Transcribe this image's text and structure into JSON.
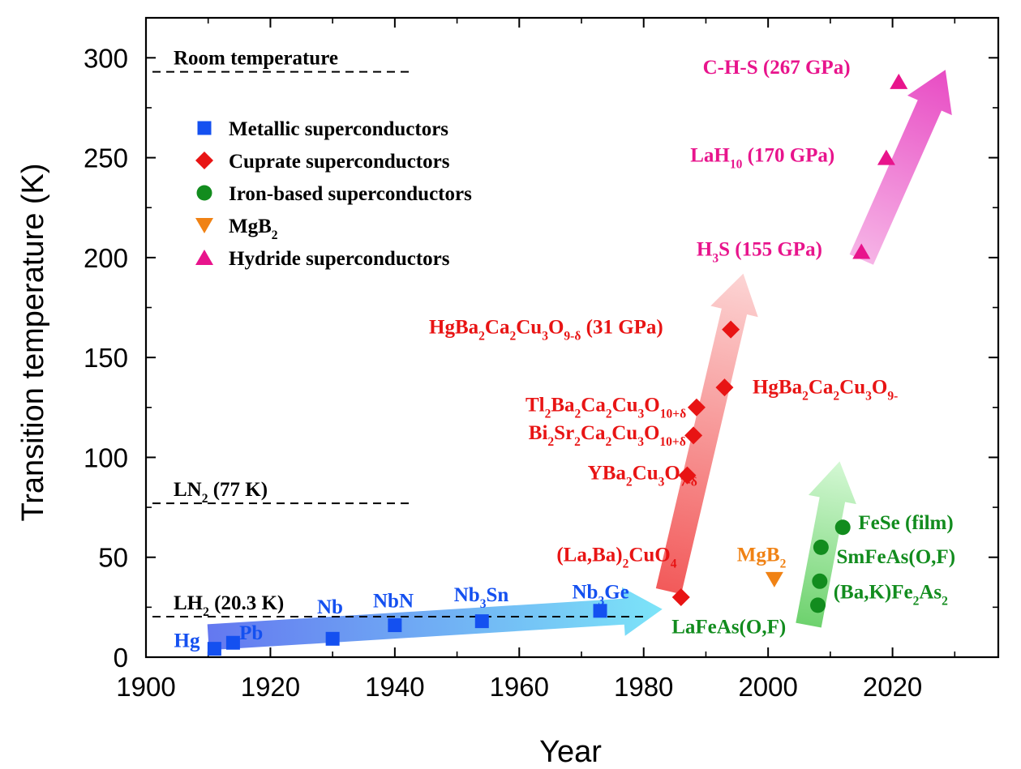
{
  "chart_data": {
    "type": "scatter",
    "title": "",
    "xlabel": "Year",
    "ylabel": "Transition temperature (K)",
    "xlim": [
      1900,
      2037
    ],
    "ylim": [
      0,
      320
    ],
    "xticks": [
      1900,
      1920,
      1940,
      1960,
      1980,
      2000,
      2020
    ],
    "yticks": [
      0,
      50,
      100,
      150,
      200,
      250,
      300
    ],
    "grid": false,
    "legend_position": "top-left",
    "reference_lines": [
      {
        "id": "room",
        "label": "Room temperature",
        "y": 293
      },
      {
        "id": "ln2",
        "label_main": "LN",
        "label_sub": "2",
        "label_rest": " (77 K)",
        "y": 77
      },
      {
        "id": "lh2",
        "label_main": "LH",
        "label_sub": "2",
        "label_rest": " (20.3 K)",
        "y": 20.3
      }
    ],
    "series": [
      {
        "id": "metallic",
        "name": "Metallic superconductors",
        "legend_parts": [
          {
            "t": "Metallic superconductors"
          }
        ],
        "marker": "square",
        "color": "#1450f0",
        "points": [
          {
            "x": 1911,
            "y": 4.2,
            "label": "Hg"
          },
          {
            "x": 1914,
            "y": 7.2,
            "label": "Pb"
          },
          {
            "x": 1930,
            "y": 9.2,
            "label": "Nb"
          },
          {
            "x": 1940,
            "y": 16,
            "label": "NbN"
          },
          {
            "x": 1954,
            "y": 18,
            "label": "Nb3Sn"
          },
          {
            "x": 1973,
            "y": 23.2,
            "label": "Nb3Ge"
          }
        ]
      },
      {
        "id": "cuprate",
        "name": "Cuprate superconductors",
        "legend_parts": [
          {
            "t": "Cuprate superconductors"
          }
        ],
        "marker": "diamond",
        "color": "#e81414",
        "points": [
          {
            "x": 1986,
            "y": 30,
            "label": "(La,Ba)2CuO4"
          },
          {
            "x": 1987,
            "y": 91,
            "label": "YBa2Cu3O7-δ"
          },
          {
            "x": 1988,
            "y": 111,
            "label": "Bi2Sr2Ca2Cu3O10+δ"
          },
          {
            "x": 1988.5,
            "y": 125,
            "label": "Tl2Ba2Ca2Cu3O10+δ"
          },
          {
            "x": 1993,
            "y": 135,
            "label": "HgBa2Ca2Cu3O9-"
          },
          {
            "x": 1994,
            "y": 164,
            "label": "HgBa2Ca2Cu3O9-δ (31 GPa)"
          }
        ]
      },
      {
        "id": "iron",
        "name": "Iron-based superconductors",
        "legend_parts": [
          {
            "t": "Iron-based superconductors"
          }
        ],
        "marker": "circle",
        "color": "#128c1e",
        "points": [
          {
            "x": 2008,
            "y": 26,
            "label": "LaFeAs(O,F)"
          },
          {
            "x": 2008.3,
            "y": 38,
            "label": "(Ba,K)Fe2As2"
          },
          {
            "x": 2008.5,
            "y": 55,
            "label": "SmFeAs(O,F)"
          },
          {
            "x": 2012,
            "y": 65,
            "label": "FeSe (film)"
          }
        ]
      },
      {
        "id": "mgb2",
        "name": "MgB2",
        "legend_parts": [
          {
            "t": "MgB"
          },
          {
            "t": "2",
            "sub": true
          }
        ],
        "marker": "triangle-down",
        "color": "#f08214",
        "points": [
          {
            "x": 2001,
            "y": 39,
            "label": "MgB2"
          }
        ]
      },
      {
        "id": "hydride",
        "name": "Hydride superconductors",
        "legend_parts": [
          {
            "t": "Hydride superconductors"
          }
        ],
        "marker": "triangle-up",
        "color": "#e8148c",
        "points": [
          {
            "x": 2015,
            "y": 203,
            "label": "H3S (155 GPa)"
          },
          {
            "x": 2019,
            "y": 250,
            "label": "LaH10 (170 GPa)"
          },
          {
            "x": 2021,
            "y": 288,
            "label": "C-H-S (267 GPa)"
          }
        ]
      }
    ],
    "annotations": [
      {
        "id": "hg",
        "color": "#1450f0",
        "x": 1904.5,
        "y": 5,
        "parts": [
          {
            "t": "Hg"
          }
        ]
      },
      {
        "id": "pb",
        "color": "#1450f0",
        "x": 1915,
        "y": 9,
        "parts": [
          {
            "t": "Pb"
          }
        ]
      },
      {
        "id": "nb",
        "color": "#1450f0",
        "x": 1927.5,
        "y": 22,
        "parts": [
          {
            "t": "Nb"
          }
        ]
      },
      {
        "id": "nbn",
        "color": "#1450f0",
        "x": 1936.5,
        "y": 25,
        "parts": [
          {
            "t": "NbN"
          }
        ]
      },
      {
        "id": "nb3sn",
        "color": "#1450f0",
        "x": 1949.5,
        "y": 28,
        "parts": [
          {
            "t": "Nb"
          },
          {
            "t": "3",
            "sub": true
          },
          {
            "t": "Sn"
          }
        ]
      },
      {
        "id": "nb3ge",
        "color": "#1450f0",
        "x": 1968.5,
        "y": 29.5,
        "parts": [
          {
            "t": "Nb"
          },
          {
            "t": "3",
            "sub": true
          },
          {
            "t": "Ge"
          }
        ]
      },
      {
        "id": "laba",
        "color": "#e81414",
        "x": 1966,
        "y": 48,
        "parts": [
          {
            "t": "(La,Ba)"
          },
          {
            "t": "2",
            "sub": true
          },
          {
            "t": "CuO"
          },
          {
            "t": "4",
            "sub": true
          }
        ]
      },
      {
        "id": "ybco",
        "color": "#e81414",
        "x": 1971,
        "y": 89,
        "parts": [
          {
            "t": "YBa"
          },
          {
            "t": "2",
            "sub": true
          },
          {
            "t": "Cu"
          },
          {
            "t": "3",
            "sub": true
          },
          {
            "t": "O"
          },
          {
            "t": "7-δ",
            "sub": true
          }
        ]
      },
      {
        "id": "bscco",
        "color": "#e81414",
        "x": 1961.5,
        "y": 109,
        "parts": [
          {
            "t": "Bi"
          },
          {
            "t": "2",
            "sub": true
          },
          {
            "t": "Sr"
          },
          {
            "t": "2",
            "sub": true
          },
          {
            "t": "Ca"
          },
          {
            "t": "2",
            "sub": true
          },
          {
            "t": "Cu"
          },
          {
            "t": "3",
            "sub": true
          },
          {
            "t": "O"
          },
          {
            "t": "10+δ",
            "sub": true
          }
        ]
      },
      {
        "id": "tbcco",
        "color": "#e81414",
        "x": 1961,
        "y": 123,
        "parts": [
          {
            "t": "Tl"
          },
          {
            "t": "2",
            "sub": true
          },
          {
            "t": "Ba"
          },
          {
            "t": "2",
            "sub": true
          },
          {
            "t": "Ca"
          },
          {
            "t": "2",
            "sub": true
          },
          {
            "t": "Cu"
          },
          {
            "t": "3",
            "sub": true
          },
          {
            "t": "O"
          },
          {
            "t": "10+δ",
            "sub": true
          }
        ]
      },
      {
        "id": "hbcco",
        "color": "#e81414",
        "x": 1997.5,
        "y": 132,
        "parts": [
          {
            "t": "HgBa"
          },
          {
            "t": "2",
            "sub": true
          },
          {
            "t": "Ca"
          },
          {
            "t": "2",
            "sub": true
          },
          {
            "t": "Cu"
          },
          {
            "t": "3",
            "sub": true
          },
          {
            "t": "O"
          },
          {
            "t": "9-",
            "sub": true
          }
        ]
      },
      {
        "id": "hbcco-p",
        "color": "#e81414",
        "x": 1945.5,
        "y": 162,
        "parts": [
          {
            "t": "HgBa"
          },
          {
            "t": "2",
            "sub": true
          },
          {
            "t": "Ca"
          },
          {
            "t": "2",
            "sub": true
          },
          {
            "t": "Cu"
          },
          {
            "t": "3",
            "sub": true
          },
          {
            "t": "O"
          },
          {
            "t": "9-δ",
            "sub": true
          },
          {
            "t": " (31 GPa)"
          }
        ]
      },
      {
        "id": "mgb2-label",
        "color": "#f08214",
        "x": 1995,
        "y": 48,
        "parts": [
          {
            "t": "MgB"
          },
          {
            "t": "2",
            "sub": true
          }
        ]
      },
      {
        "id": "lafeaso",
        "color": "#128c1e",
        "x": 1984.5,
        "y": 12,
        "parts": [
          {
            "t": "LaFeAs(O,F)"
          }
        ]
      },
      {
        "id": "bak",
        "color": "#128c1e",
        "x": 2010.5,
        "y": 29.5,
        "parts": [
          {
            "t": "(Ba,K)Fe"
          },
          {
            "t": "2",
            "sub": true
          },
          {
            "t": "As"
          },
          {
            "t": "2",
            "sub": true
          }
        ]
      },
      {
        "id": "smfeas",
        "color": "#128c1e",
        "x": 2011,
        "y": 47,
        "parts": [
          {
            "t": "SmFeAs(O,F)"
          }
        ]
      },
      {
        "id": "fese",
        "color": "#128c1e",
        "x": 2014.5,
        "y": 64,
        "parts": [
          {
            "t": "FeSe (film)"
          }
        ]
      },
      {
        "id": "h3s",
        "color": "#e8148c",
        "x": 1988.5,
        "y": 201,
        "parts": [
          {
            "t": "H"
          },
          {
            "t": "3",
            "sub": true
          },
          {
            "t": "S (155 GPa)"
          }
        ]
      },
      {
        "id": "lah10",
        "color": "#e8148c",
        "x": 1987.5,
        "y": 248,
        "parts": [
          {
            "t": "LaH"
          },
          {
            "t": "10",
            "sub": true
          },
          {
            "t": " (170 GPa)"
          }
        ]
      },
      {
        "id": "chs",
        "color": "#e8148c",
        "x": 1989.5,
        "y": 292,
        "parts": [
          {
            "t": "C-H-S (267 GPa)"
          }
        ]
      }
    ],
    "trend_arrows": [
      {
        "id": "metallic-trend",
        "color_start": "#6478f0",
        "color_end": "#7ce4f8",
        "from": [
          1910,
          10
        ],
        "to": [
          1983,
          24
        ]
      },
      {
        "id": "cuprate-trend",
        "color_start": "#f25a5a",
        "color_end": "#fcd4d4",
        "from": [
          1984,
          33
        ],
        "to": [
          1996,
          192
        ]
      },
      {
        "id": "iron-trend",
        "color_start": "#6ed26e",
        "color_end": "#d4f8d4",
        "from": [
          2006.5,
          16
        ],
        "to": [
          2011.5,
          98
        ]
      },
      {
        "id": "hydride-trend",
        "color_start": "#f6b4e6",
        "color_end": "#e84cc4",
        "from": [
          2015,
          199
        ],
        "to": [
          2028.5,
          294
        ]
      }
    ]
  }
}
